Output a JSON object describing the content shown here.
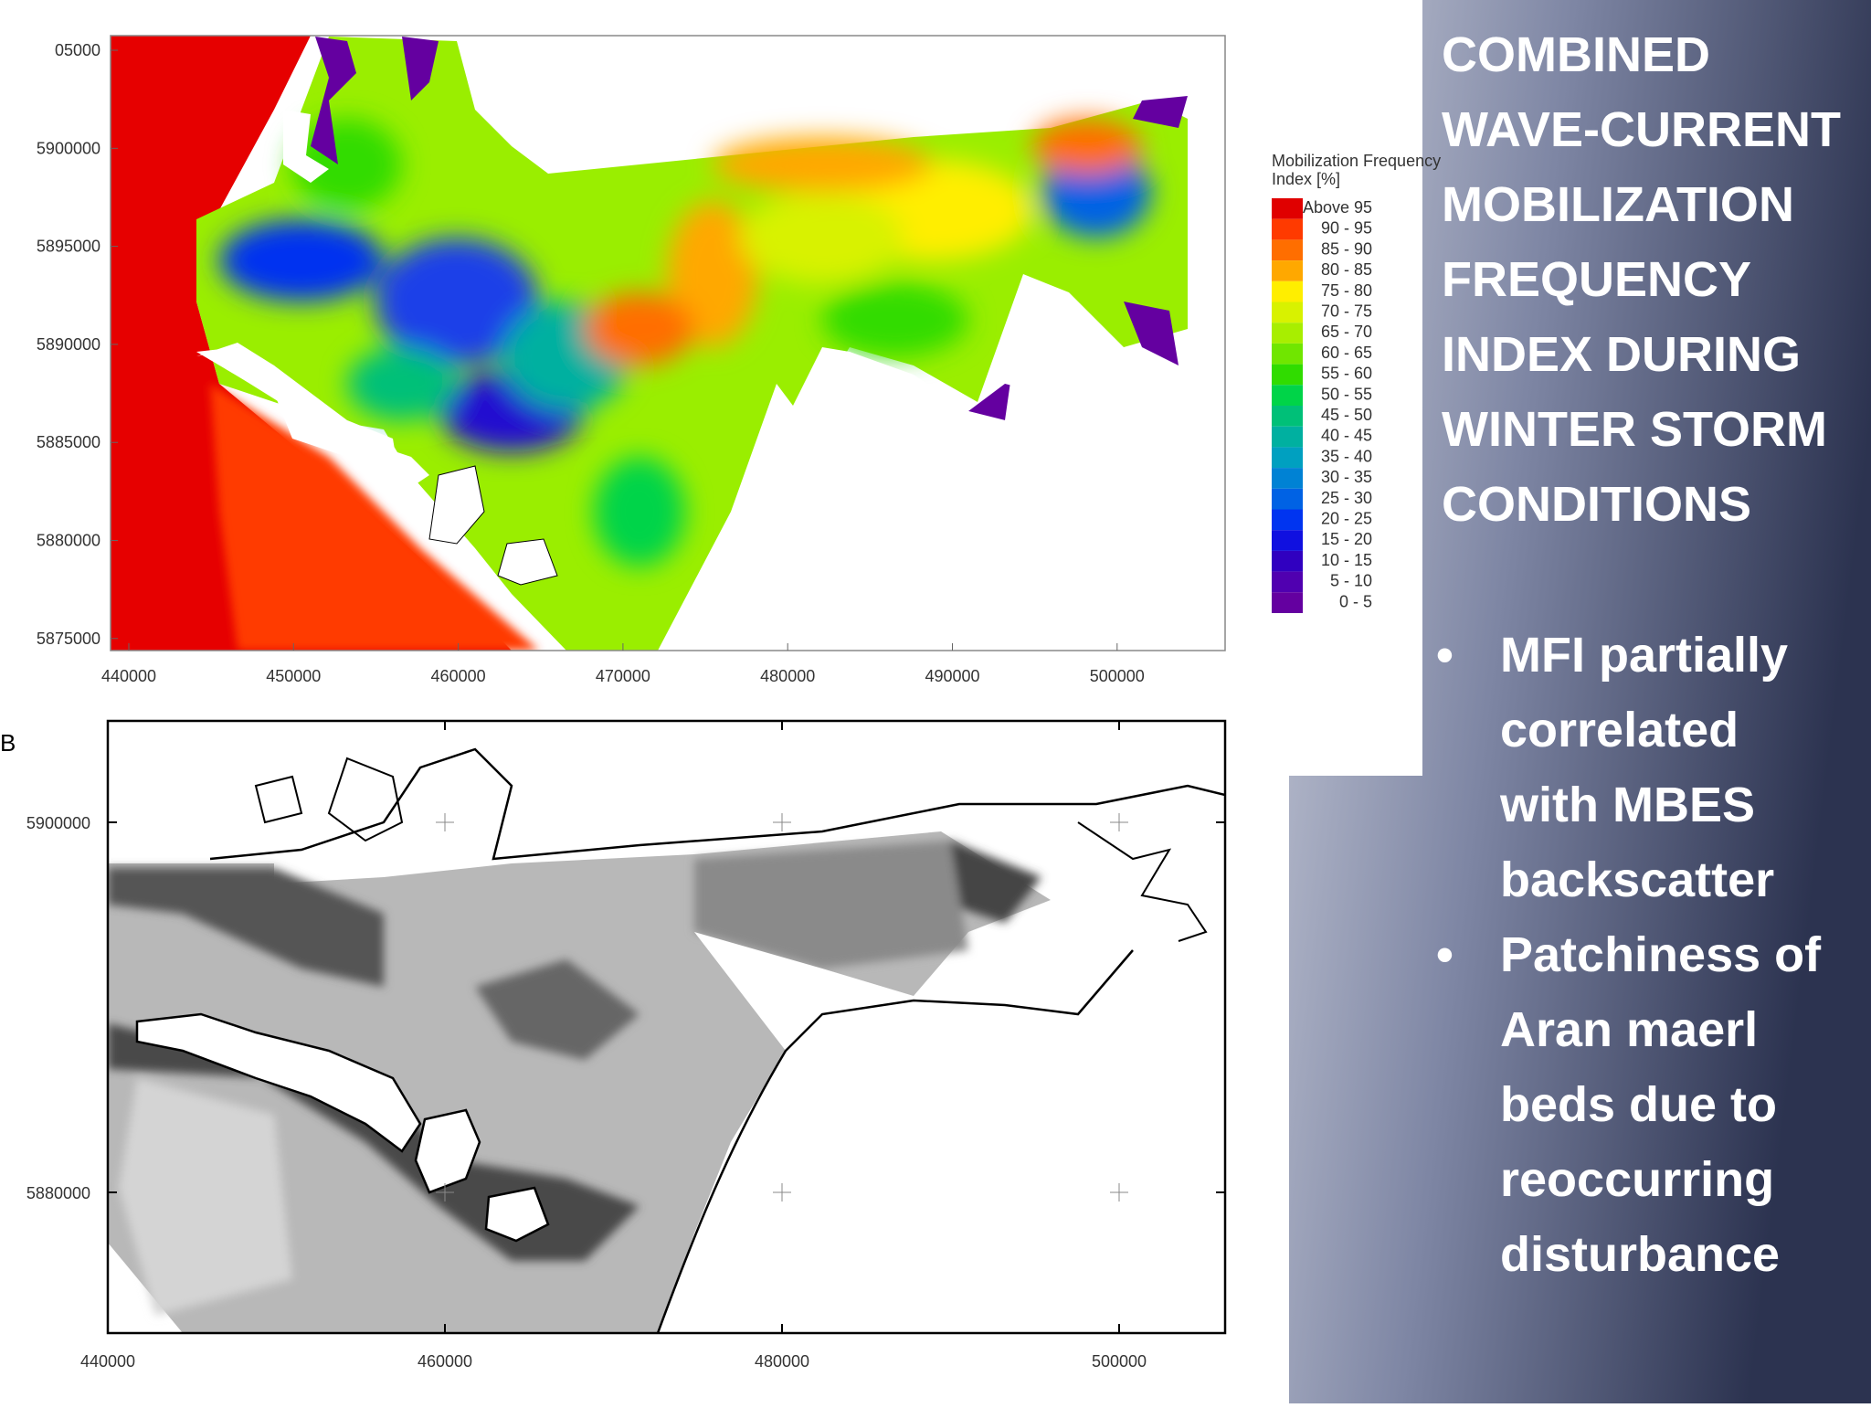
{
  "title_lines": [
    "COMBINED",
    "WAVE-CURRENT",
    "MOBILIZATION",
    "FREQUENCY",
    "INDEX DURING",
    "WINTER STORM",
    "CONDITIONS"
  ],
  "bullets": [
    [
      "MFI partially",
      "correlated",
      "with MBES",
      "backscatter"
    ],
    [
      "Patchiness of",
      "Aran maerl",
      "beds due to",
      "reoccurring",
      "disturbance"
    ]
  ],
  "map_a": {
    "y_ticks": [
      "05000",
      "5900000",
      "5895000",
      "5890000",
      "5885000",
      "5880000",
      "5875000"
    ],
    "x_ticks": [
      "440000",
      "450000",
      "460000",
      "470000",
      "480000",
      "490000",
      "500000"
    ],
    "legend": {
      "title_lines": [
        "Mobilization Frequency",
        "Index [%]"
      ],
      "items": [
        {
          "label": "Above 95",
          "color": "#e00000"
        },
        {
          "label": "90 - 95",
          "color": "#ff3a00"
        },
        {
          "label": "85 - 90",
          "color": "#ff6e00"
        },
        {
          "label": "80 - 85",
          "color": "#ffa800"
        },
        {
          "label": "75 - 80",
          "color": "#ffee00"
        },
        {
          "label": "70 - 75",
          "color": "#d8f200"
        },
        {
          "label": "65 - 70",
          "color": "#a8ee00"
        },
        {
          "label": "60 - 65",
          "color": "#70e600"
        },
        {
          "label": "55 - 60",
          "color": "#30dc00"
        },
        {
          "label": "50 - 55",
          "color": "#00d448"
        },
        {
          "label": "45 - 50",
          "color": "#00c078"
        },
        {
          "label": "40 - 45",
          "color": "#00b0a0"
        },
        {
          "label": "35 - 40",
          "color": "#00a0c0"
        },
        {
          "label": "30 - 35",
          "color": "#0082d4"
        },
        {
          "label": "25 - 30",
          "color": "#0062e4"
        },
        {
          "label": "20 - 25",
          "color": "#0034f0"
        },
        {
          "label": "15 - 20",
          "color": "#1010e0"
        },
        {
          "label": "10 - 15",
          "color": "#3000c0"
        },
        {
          "label": "5 - 10",
          "color": "#5000b0"
        },
        {
          "label": "0 - 5",
          "color": "#6400a0"
        }
      ]
    }
  },
  "map_b": {
    "label": "B",
    "y_ticks": [
      "5900000",
      "5880000"
    ],
    "x_ticks": [
      "440000",
      "460000",
      "480000",
      "500000"
    ]
  }
}
